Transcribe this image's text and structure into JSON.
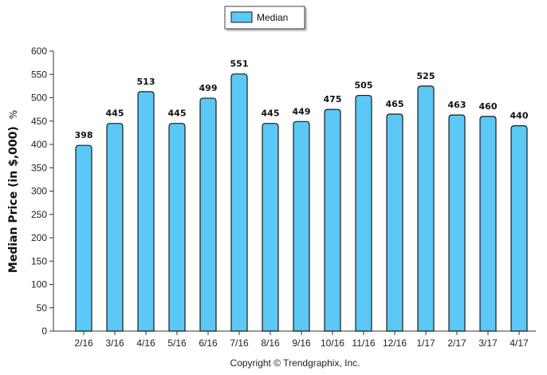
{
  "chart_data": {
    "type": "bar",
    "categories": [
      "2/16",
      "3/16",
      "4/16",
      "5/16",
      "6/16",
      "7/16",
      "8/16",
      "9/16",
      "10/16",
      "11/16",
      "12/16",
      "1/17",
      "2/17",
      "3/17",
      "4/17"
    ],
    "series": [
      {
        "name": "Median",
        "values": [
          398,
          445,
          513,
          445,
          499,
          551,
          445,
          449,
          475,
          505,
          465,
          525,
          463,
          460,
          440
        ]
      }
    ],
    "data_labels": [
      "398",
      "445",
      "513",
      "445",
      "499",
      "551",
      "445",
      "449",
      "475",
      "505",
      "465",
      "525",
      "463",
      "460",
      "440"
    ],
    "yticks": [
      0,
      50,
      100,
      150,
      200,
      250,
      300,
      350,
      400,
      450,
      500,
      550,
      600
    ],
    "ylim": [
      0,
      600
    ],
    "xlabel": "",
    "ylabel": "Median Price (in $,000)",
    "ylabel_unit": "%",
    "legend_position": "top-center",
    "grid": false,
    "bar_color": "#5bc8f5",
    "bar_border_color": "#1a1a1a"
  },
  "footer": {
    "copyright": "Copyright © Trendgraphix, Inc."
  }
}
